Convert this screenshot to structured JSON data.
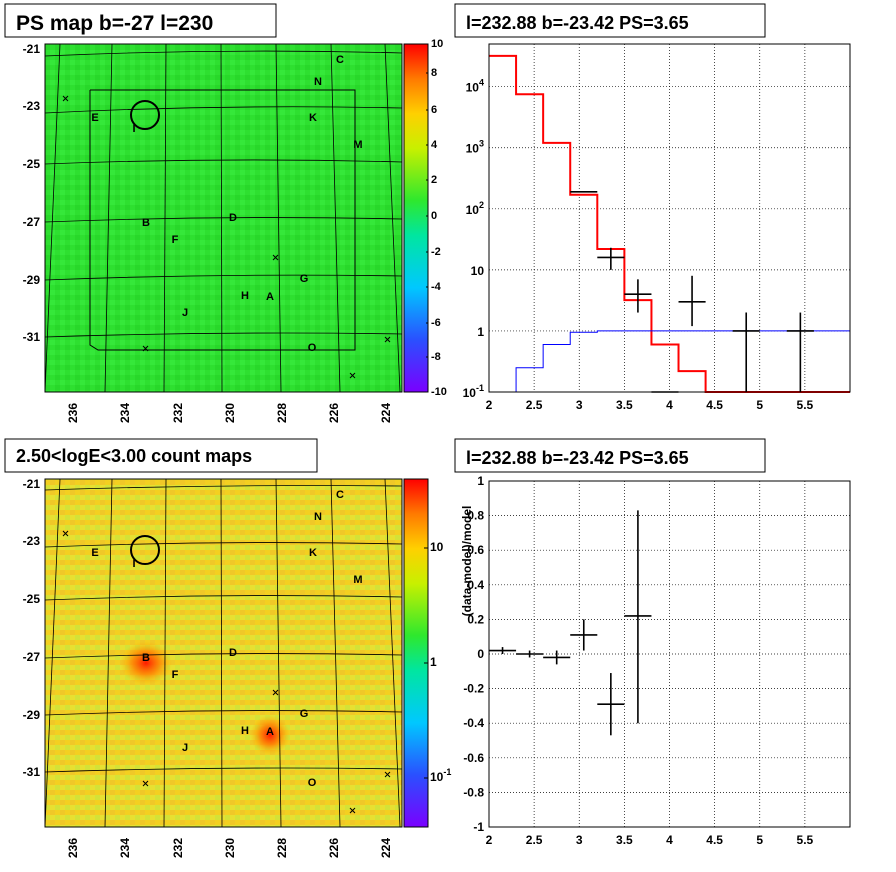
{
  "panels": {
    "tl_title": "PS map b=-27 l=230",
    "tr_title": "l=232.88 b=-23.42 PS=3.65",
    "bl_title": "2.50<logE<3.00 count maps",
    "br_title": "l=232.88 b=-23.42 PS=3.65"
  },
  "maps": {
    "y_ticks": [
      "-21",
      "-23",
      "-25",
      "-27",
      "-29",
      "-31"
    ],
    "x_ticks": [
      "236",
      "234",
      "232",
      "230",
      "228",
      "226",
      "224"
    ],
    "source_labels": [
      "C",
      "N",
      "E",
      "I",
      "K",
      "M",
      "D",
      "B",
      "F",
      "G",
      "H",
      "A",
      "J",
      "O"
    ],
    "ps_colorbar": [
      "10",
      "8",
      "6",
      "4",
      "2",
      "0",
      "-2",
      "-4",
      "-6",
      "-8",
      "-10"
    ],
    "count_colorbar": [
      "10",
      "1",
      "10^-1"
    ]
  },
  "chart_data": [
    {
      "type": "step",
      "title": "l=232.88 b=-23.42 PS=3.65",
      "xlabel": "",
      "ylabel": "",
      "xlim": [
        2,
        6
      ],
      "ylim": [
        0.1,
        50000
      ],
      "yscale": "log",
      "grid": true,
      "x_ticks": [
        "2",
        "2.5",
        "3",
        "3.5",
        "4",
        "4.5",
        "5",
        "5.5"
      ],
      "y_ticks": [
        "10^-1",
        "1",
        "10",
        "10^2",
        "10^3",
        "10^4"
      ],
      "series": [
        {
          "color": "#ff0000",
          "edges": [
            2.0,
            2.3,
            2.6,
            2.9,
            3.2,
            3.5,
            3.8,
            4.1,
            4.4,
            6.0
          ],
          "values": [
            32000,
            7500,
            1200,
            170,
            22,
            3.2,
            0.6,
            0.22,
            0.1
          ]
        },
        {
          "color": "#0000ff",
          "edges": [
            2.0,
            2.3,
            2.6,
            2.9,
            3.2,
            6.0
          ],
          "values": [
            0.1,
            0.25,
            0.6,
            0.95,
            1.0
          ]
        },
        {
          "color": "#000000",
          "x": [
            3.05,
            3.35,
            3.65,
            3.95,
            4.25,
            4.85,
            5.45
          ],
          "y": [
            190,
            16,
            4,
            0.1,
            3,
            1,
            1
          ],
          "xerr": 0.15,
          "ylo": [
            190,
            10,
            2,
            0.1,
            1.2,
            0.1,
            0.1
          ],
          "yhi": [
            190,
            23,
            7,
            0.1,
            8,
            2,
            2
          ]
        }
      ]
    },
    {
      "type": "errorbar",
      "title": "l=232.88 b=-23.42 PS=3.65",
      "xlabel": "",
      "ylabel": "(data-model)/model",
      "xlim": [
        2,
        6
      ],
      "ylim": [
        -1,
        1
      ],
      "grid": true,
      "x_ticks": [
        "2",
        "2.5",
        "3",
        "3.5",
        "4",
        "4.5",
        "5",
        "5.5"
      ],
      "y_ticks": [
        "1",
        "0.8",
        "0.6",
        "0.4",
        "0.2",
        "0",
        "-0.2",
        "-0.4",
        "-0.6",
        "-0.8",
        "-1"
      ],
      "series": [
        {
          "color": "#000000",
          "x": [
            2.15,
            2.45,
            2.75,
            3.05,
            3.35,
            3.65
          ],
          "y": [
            0.02,
            0.0,
            -0.02,
            0.11,
            -0.29,
            0.22
          ],
          "xerr": 0.15,
          "ylo": [
            0.0,
            -0.02,
            -0.06,
            0.02,
            -0.47,
            -0.4
          ],
          "yhi": [
            0.04,
            0.02,
            0.02,
            0.2,
            -0.11,
            0.83
          ]
        }
      ]
    }
  ]
}
